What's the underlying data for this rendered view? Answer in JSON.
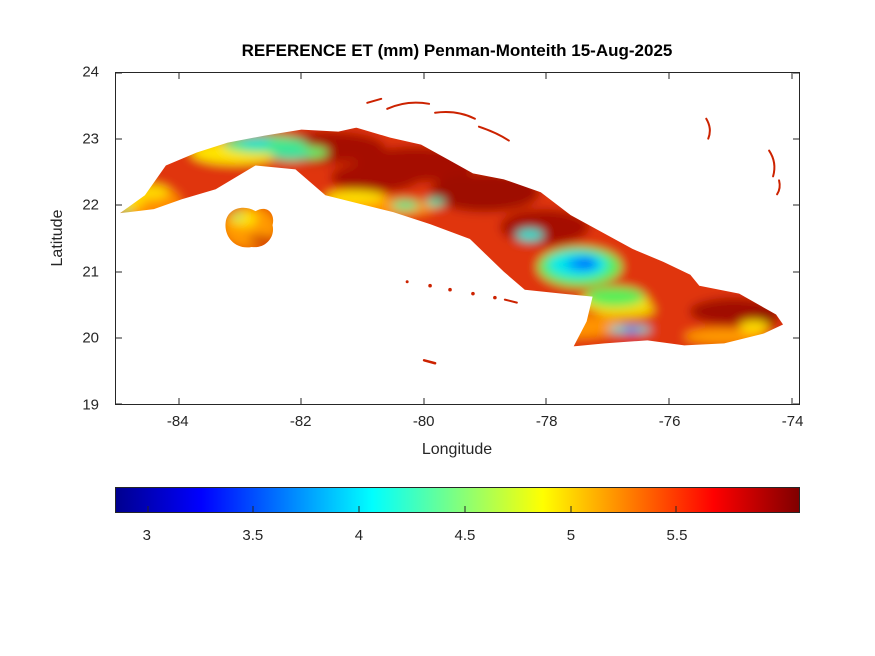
{
  "chart_data": {
    "type": "heatmap",
    "title": "REFERENCE ET (mm) Penman-Monteith 15-Aug-2025",
    "variable": "Reference evapotranspiration",
    "units": "mm",
    "method": "Penman-Monteith",
    "date": "15-Aug-2025",
    "region": "Cuba",
    "xlabel": "Longitude",
    "ylabel": "Latitude",
    "xlim": [
      -85.02,
      -73.88
    ],
    "ylim": [
      19,
      24
    ],
    "x_ticks": [
      -84,
      -82,
      -80,
      -78,
      -76,
      -74
    ],
    "y_ticks": [
      19,
      20,
      21,
      22,
      23,
      24
    ],
    "grid": false,
    "legend": "none",
    "background": "#ffffff",
    "colorbar": {
      "orientation": "horizontal",
      "position": "below-axes",
      "colormap": "jet",
      "clim": [
        2.85,
        6.08
      ],
      "ticks": [
        3,
        3.5,
        4,
        4.5,
        5,
        5.5
      ],
      "stops": [
        {
          "pos": 0.0,
          "color": "#00008f"
        },
        {
          "pos": 0.125,
          "color": "#0000ff"
        },
        {
          "pos": 0.375,
          "color": "#00ffff"
        },
        {
          "pos": 0.625,
          "color": "#ffff00"
        },
        {
          "pos": 0.875,
          "color": "#ff0000"
        },
        {
          "pos": 1.0,
          "color": "#800000"
        }
      ]
    },
    "regions_depicted": [
      {
        "area": "western Cuba (Pinar del Rio)",
        "approx_value_mm": "4.5-5.8",
        "color": "yellow-orange-red with small green spots"
      },
      {
        "area": "northwest coastal band (~-82.5 to -80.5, ~22.9)",
        "approx_value_mm": "4.0-4.7",
        "color": "green-cyan-yellow mottle"
      },
      {
        "area": "north-central spine (~-82 to -78)",
        "approx_value_mm": "5.6-6.0",
        "color": "dark red"
      },
      {
        "area": "central-east interior (~-77.7 to -77, ~21.1)",
        "approx_value_mm": "3.2-4.2",
        "color": "cyan patch with blue core (minimum)"
      },
      {
        "area": "southeast interior streak (~-76.8, ~20.0)",
        "approx_value_mm": "3.5-4.5",
        "color": "cyan streak with blue core"
      },
      {
        "area": "eastern tip and coasts",
        "approx_value_mm": "5.2-6.0",
        "color": "red to dark red"
      },
      {
        "area": "Isla de la Juventud",
        "approx_value_mm": "4.6-5.6",
        "color": "orange-yellow with red streaks"
      }
    ]
  }
}
